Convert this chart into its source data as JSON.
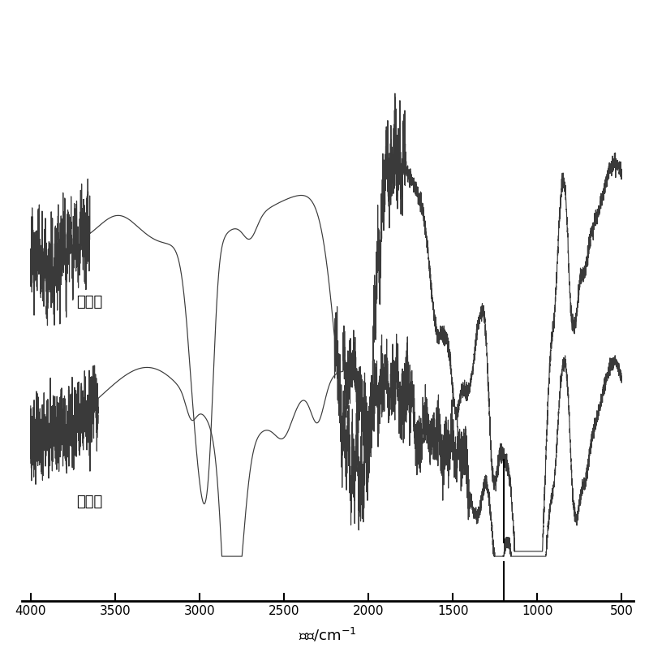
{
  "xlabel": "波长/cm-1",
  "xmin": 500,
  "xmax": 4000,
  "xticks": [
    4000,
    3500,
    3000,
    2500,
    2000,
    1500,
    1000,
    500
  ],
  "label_after": "添加后",
  "label_before": "添加前",
  "line_color": "#3a3a3a",
  "bg_color": "#ffffff",
  "figsize": [
    8.0,
    8.09
  ],
  "dpi": 100
}
